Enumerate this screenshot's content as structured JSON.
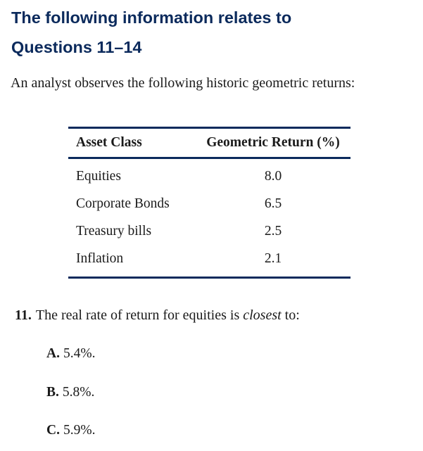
{
  "heading": {
    "line1": "The following information relates to",
    "line2": "Questions 11–14"
  },
  "intro": "An analyst observes the following historic geometric returns:",
  "table": {
    "headers": [
      "Asset Class",
      "Geometric Return (%)"
    ],
    "rows": [
      [
        "Equities",
        "8.0"
      ],
      [
        "Corporate Bonds",
        "6.5"
      ],
      [
        "Treasury bills",
        "2.5"
      ],
      [
        "Inflation",
        "2.1"
      ]
    ]
  },
  "question": {
    "number": "11.",
    "text_before": "The real rate of return for equities is ",
    "emphasis": "closest",
    "text_after": " to:"
  },
  "options": [
    {
      "letter": "A.",
      "text": "5.4%."
    },
    {
      "letter": "B.",
      "text": "5.8%."
    },
    {
      "letter": "C.",
      "text": "5.9%."
    }
  ],
  "colors": {
    "heading": "#0b2a5c",
    "rule": "#0b2a5c",
    "body_text": "#1a1a1a"
  }
}
